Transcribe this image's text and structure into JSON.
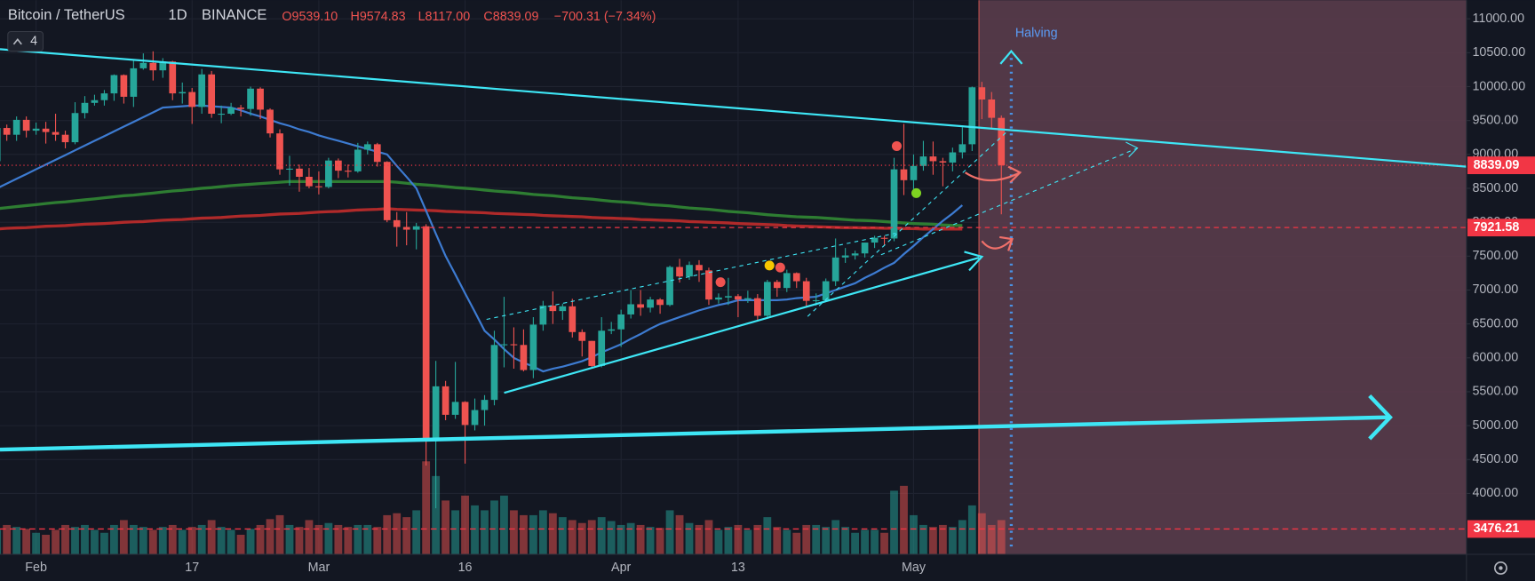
{
  "chart_data": {
    "type": "candlestick",
    "title": "Bitcoin / TetherUS",
    "interval": "1D",
    "exchange": "BINANCE",
    "legend_values": [
      "O9539.10",
      "H9574.83",
      "L8117.00",
      "C8839.09",
      "−700.31 (−7.34%)"
    ],
    "indicator_count": 4,
    "annotation": "Halving",
    "categories": [
      null,
      null,
      null,
      null,
      "Feb",
      null,
      null,
      null,
      null,
      null,
      null,
      null,
      null,
      null,
      null,
      null,
      null,
      null,
      null,
      null,
      "17",
      null,
      null,
      null,
      null,
      null,
      null,
      null,
      null,
      null,
      null,
      null,
      null,
      "Mar",
      null,
      null,
      null,
      null,
      null,
      null,
      null,
      null,
      null,
      null,
      null,
      null,
      null,
      null,
      "16",
      null,
      null,
      null,
      null,
      null,
      null,
      null,
      null,
      null,
      null,
      null,
      null,
      null,
      null,
      null,
      "Apr",
      null,
      null,
      null,
      null,
      null,
      null,
      null,
      null,
      null,
      null,
      null,
      "13",
      null,
      null,
      null,
      null,
      null,
      null,
      null,
      null,
      null,
      null,
      null,
      null,
      null,
      null,
      null,
      null,
      null,
      "May",
      null,
      null,
      null,
      null,
      null,
      null,
      null,
      null,
      null
    ],
    "open": [
      8900,
      9390,
      9290,
      9510,
      9350,
      9380,
      9330,
      9290,
      9180,
      9610,
      9760,
      9800,
      9900,
      10170,
      9850,
      10270,
      10350,
      10240,
      10370,
      9900,
      9920,
      9700,
      10180,
      9600,
      9600,
      9690,
      9670,
      9970,
      9660,
      9310,
      8780,
      8790,
      8670,
      8530,
      8520,
      8910,
      8760,
      8750,
      9070,
      9150,
      8890,
      8030,
      7930,
      7890,
      7940,
      4800,
      5580,
      5160,
      5350,
      5010,
      5230,
      5380,
      6190,
      6200,
      6190,
      5820,
      6490,
      6770,
      6690,
      6760,
      6380,
      6250,
      5880,
      6400,
      6420,
      6640,
      6790,
      6740,
      6860,
      6780,
      7340,
      7200,
      7370,
      7290,
      6860,
      6890,
      6910,
      6860,
      6880,
      6620,
      7120,
      7030,
      7250,
      7130,
      6840,
      6850,
      7130,
      7480,
      7510,
      7540,
      7700,
      7770,
      7760,
      8780,
      8620,
      8830,
      8970,
      8900,
      8880,
      9030,
      9150,
      9990,
      9810,
      9539.1
    ],
    "high": [
      9430,
      9440,
      9560,
      9560,
      9470,
      9480,
      9600,
      9350,
      9770,
      9860,
      9880,
      9950,
      10180,
      10180,
      10390,
      10490,
      10520,
      10420,
      10380,
      10060,
      9980,
      10260,
      10230,
      9720,
      9760,
      9730,
      10000,
      9990,
      9680,
      9370,
      8980,
      8850,
      8800,
      8750,
      8950,
      8940,
      8850,
      9170,
      9190,
      9170,
      8900,
      8150,
      8150,
      7990,
      7970,
      5955,
      5660,
      5940,
      5360,
      5400,
      5450,
      6400,
      6900,
      6450,
      6420,
      6600,
      6840,
      6980,
      6800,
      6870,
      6420,
      6250,
      6600,
      6530,
      6710,
      7000,
      7000,
      6900,
      6880,
      7360,
      7460,
      7420,
      7440,
      7330,
      6950,
      7180,
      6940,
      6990,
      6940,
      7150,
      7150,
      7300,
      7260,
      7180,
      6950,
      7170,
      7760,
      7620,
      7580,
      7700,
      7800,
      7800,
      8950,
      9450,
      9000,
      9200,
      9190,
      8950,
      9100,
      9400,
      10000,
      10070,
      9920,
      9574.83
    ],
    "low": [
      8860,
      9200,
      9200,
      9250,
      9290,
      9160,
      9200,
      9090,
      9150,
      9530,
      9720,
      9720,
      9790,
      9750,
      9700,
      10250,
      10090,
      10130,
      9800,
      9750,
      9450,
      9600,
      9540,
      9460,
      9580,
      9560,
      9570,
      9520,
      9250,
      8700,
      8540,
      8450,
      8500,
      8410,
      8500,
      8650,
      8660,
      8730,
      9000,
      8820,
      8000,
      7640,
      7660,
      7600,
      4410,
      3782,
      5080,
      5100,
      4440,
      4930,
      5000,
      5300,
      5860,
      5840,
      5800,
      5700,
      6400,
      6500,
      6560,
      6300,
      6020,
      5860,
      5860,
      6350,
      6160,
      6580,
      6620,
      6670,
      6650,
      6760,
      7110,
      7150,
      7120,
      6780,
      6800,
      6780,
      6600,
      6810,
      6540,
      6600,
      6900,
      6970,
      7030,
      6750,
      6770,
      6830,
      7060,
      7400,
      7450,
      7480,
      7620,
      7660,
      7720,
      8400,
      8400,
      8760,
      8700,
      8530,
      8750,
      8940,
      9050,
      9520,
      9390,
      8117
    ],
    "close": [
      9390,
      9290,
      9510,
      9350,
      9380,
      9330,
      9290,
      9180,
      9610,
      9760,
      9800,
      9900,
      10170,
      9850,
      10270,
      10350,
      10240,
      10370,
      9900,
      9920,
      9700,
      10180,
      9600,
      9600,
      9690,
      9670,
      9970,
      9660,
      9310,
      8780,
      8790,
      8670,
      8530,
      8520,
      8910,
      8760,
      8750,
      9070,
      9150,
      8890,
      8030,
      7930,
      7890,
      7940,
      4800,
      5580,
      5160,
      5350,
      5010,
      5230,
      5380,
      6190,
      6200,
      6190,
      5820,
      6490,
      6770,
      6690,
      6760,
      6380,
      6250,
      5880,
      6400,
      6420,
      6640,
      6790,
      6740,
      6860,
      6780,
      7340,
      7200,
      7370,
      7290,
      6860,
      6890,
      6910,
      6860,
      6880,
      6620,
      7120,
      7030,
      7250,
      7130,
      6840,
      6850,
      7130,
      7480,
      7510,
      7540,
      7700,
      7770,
      7760,
      8780,
      8620,
      8830,
      8970,
      8900,
      8880,
      9030,
      9150,
      9990,
      9810,
      9540,
      8839.09
    ],
    "volume": [
      25,
      30,
      28,
      26,
      22,
      20,
      25,
      30,
      28,
      30,
      25,
      22,
      30,
      35,
      30,
      28,
      25,
      28,
      30,
      25,
      28,
      30,
      35,
      28,
      25,
      20,
      26,
      30,
      36,
      40,
      30,
      28,
      35,
      30,
      32,
      30,
      28,
      30,
      30,
      28,
      40,
      42,
      38,
      45,
      95,
      80,
      55,
      45,
      60,
      50,
      45,
      55,
      60,
      45,
      40,
      40,
      45,
      42,
      38,
      35,
      32,
      35,
      38,
      34,
      30,
      32,
      30,
      28,
      27,
      45,
      40,
      32,
      30,
      35,
      25,
      28,
      30,
      25,
      30,
      38,
      28,
      25,
      22,
      30,
      30,
      28,
      35,
      28,
      22,
      25,
      25,
      22,
      65,
      70,
      40,
      30,
      28,
      30,
      28,
      35,
      50,
      42,
      30,
      35
    ],
    "up_color": "#26a69a",
    "down_color": "#ef5350",
    "indicators": [
      {
        "color": "#2e7d32",
        "values": [
          8200,
          8215,
          8230,
          8245,
          8260,
          8275,
          8290,
          8300,
          8315,
          8330,
          8345,
          8360,
          8375,
          8390,
          8400,
          8415,
          8430,
          8445,
          8460,
          8470,
          8485,
          8500,
          8510,
          8525,
          8540,
          8550,
          8560,
          8570,
          8580,
          8590,
          8600,
          8600,
          8600,
          8600,
          8600,
          8600,
          8600,
          8600,
          8600,
          8600,
          8600,
          8590,
          8575,
          8560,
          8550,
          8540,
          8525,
          8510,
          8500,
          8490,
          8475,
          8460,
          8450,
          8440,
          8425,
          8410,
          8400,
          8390,
          8375,
          8360,
          8350,
          8340,
          8325,
          8310,
          8300,
          8290,
          8275,
          8260,
          8250,
          8240,
          8225,
          8210,
          8200,
          8190,
          8175,
          8160,
          8150,
          8140,
          8125,
          8110,
          8100,
          8090,
          8080,
          8075,
          8070,
          8060,
          8050,
          8040,
          8030,
          8025,
          8020,
          8010,
          8000,
          7990,
          7980,
          7975,
          7970,
          7960,
          7955,
          7950,
          null,
          null,
          null,
          null
        ]
      },
      {
        "color": "#b02a2a",
        "values": [
          7900,
          7910,
          7915,
          7920,
          7930,
          7940,
          7945,
          7950,
          7960,
          7970,
          7975,
          7980,
          7990,
          8000,
          8005,
          8010,
          8020,
          8030,
          8035,
          8040,
          8050,
          8060,
          8065,
          8070,
          8080,
          8090,
          8095,
          8100,
          8110,
          8120,
          8125,
          8130,
          8140,
          8150,
          8155,
          8160,
          8170,
          8180,
          8185,
          8190,
          8200,
          8190,
          8185,
          8180,
          8175,
          8170,
          8160,
          8155,
          8150,
          8145,
          8140,
          8130,
          8125,
          8120,
          8115,
          8110,
          8100,
          8095,
          8090,
          8085,
          8080,
          8070,
          8065,
          8060,
          8055,
          8050,
          8040,
          8035,
          8030,
          8025,
          8020,
          8010,
          8005,
          8000,
          7995,
          7990,
          7980,
          7975,
          7970,
          7965,
          7960,
          7950,
          7945,
          7940,
          7935,
          7930,
          7925,
          7920,
          7920,
          7915,
          7915,
          7910,
          7910,
          7905,
          7905,
          7900,
          7900,
          7900,
          7900,
          7900,
          null,
          null,
          null,
          null
        ]
      },
      {
        "color": "#3d7bd1",
        "values": [
          8500,
          8570,
          8640,
          8710,
          8780,
          8850,
          8920,
          8990,
          9060,
          9130,
          9200,
          9270,
          9340,
          9410,
          9480,
          9550,
          9620,
          9690,
          9700,
          9710,
          9720,
          9720,
          9710,
          9700,
          9690,
          9650,
          9600,
          9560,
          9510,
          9460,
          9420,
          9370,
          9330,
          9280,
          9240,
          9200,
          9160,
          9120,
          9080,
          9040,
          9000,
          8830,
          8670,
          8500,
          8170,
          7830,
          7500,
          7230,
          6950,
          6680,
          6400,
          6270,
          6130,
          6000,
          5930,
          5870,
          5800,
          5840,
          5870,
          5910,
          5950,
          6010,
          6080,
          6140,
          6200,
          6280,
          6350,
          6430,
          6500,
          6550,
          6600,
          6650,
          6700,
          6740,
          6780,
          6810,
          6850,
          6850,
          6850,
          6850,
          6850,
          6860,
          6880,
          6890,
          6900,
          6950,
          7000,
          7050,
          7100,
          7180,
          7250,
          7330,
          7400,
          7530,
          7650,
          7780,
          7900,
          8020,
          8130,
          8250,
          null,
          null,
          null,
          null
        ]
      }
    ],
    "price_lines": [
      8839.09,
      7921.58,
      3476.21
    ],
    "price_line_color": "#f23645",
    "ylim": [
      3102,
      11274
    ],
    "yticks": [
      {
        "value": 4000,
        "label": "4000.00"
      },
      {
        "value": 4500,
        "label": "4500.00"
      },
      {
        "value": 5000,
        "label": "5000.00"
      },
      {
        "value": 5500,
        "label": "5500.00"
      },
      {
        "value": 6000,
        "label": "6000.00"
      },
      {
        "value": 6500,
        "label": "6500.00"
      },
      {
        "value": 7000,
        "label": "7000.00"
      },
      {
        "value": 7500,
        "label": "7500.00"
      },
      {
        "value": 8000,
        "label": "8000.00"
      },
      {
        "value": 8500,
        "label": "8500.00"
      },
      {
        "value": 9000,
        "label": "9000.00"
      },
      {
        "value": 9500,
        "label": "9500.00"
      },
      {
        "value": 10000,
        "label": "10000.00"
      },
      {
        "value": 10500,
        "label": "10500.00"
      },
      {
        "value": 11000,
        "label": "11000.00"
      }
    ],
    "grid": true
  }
}
